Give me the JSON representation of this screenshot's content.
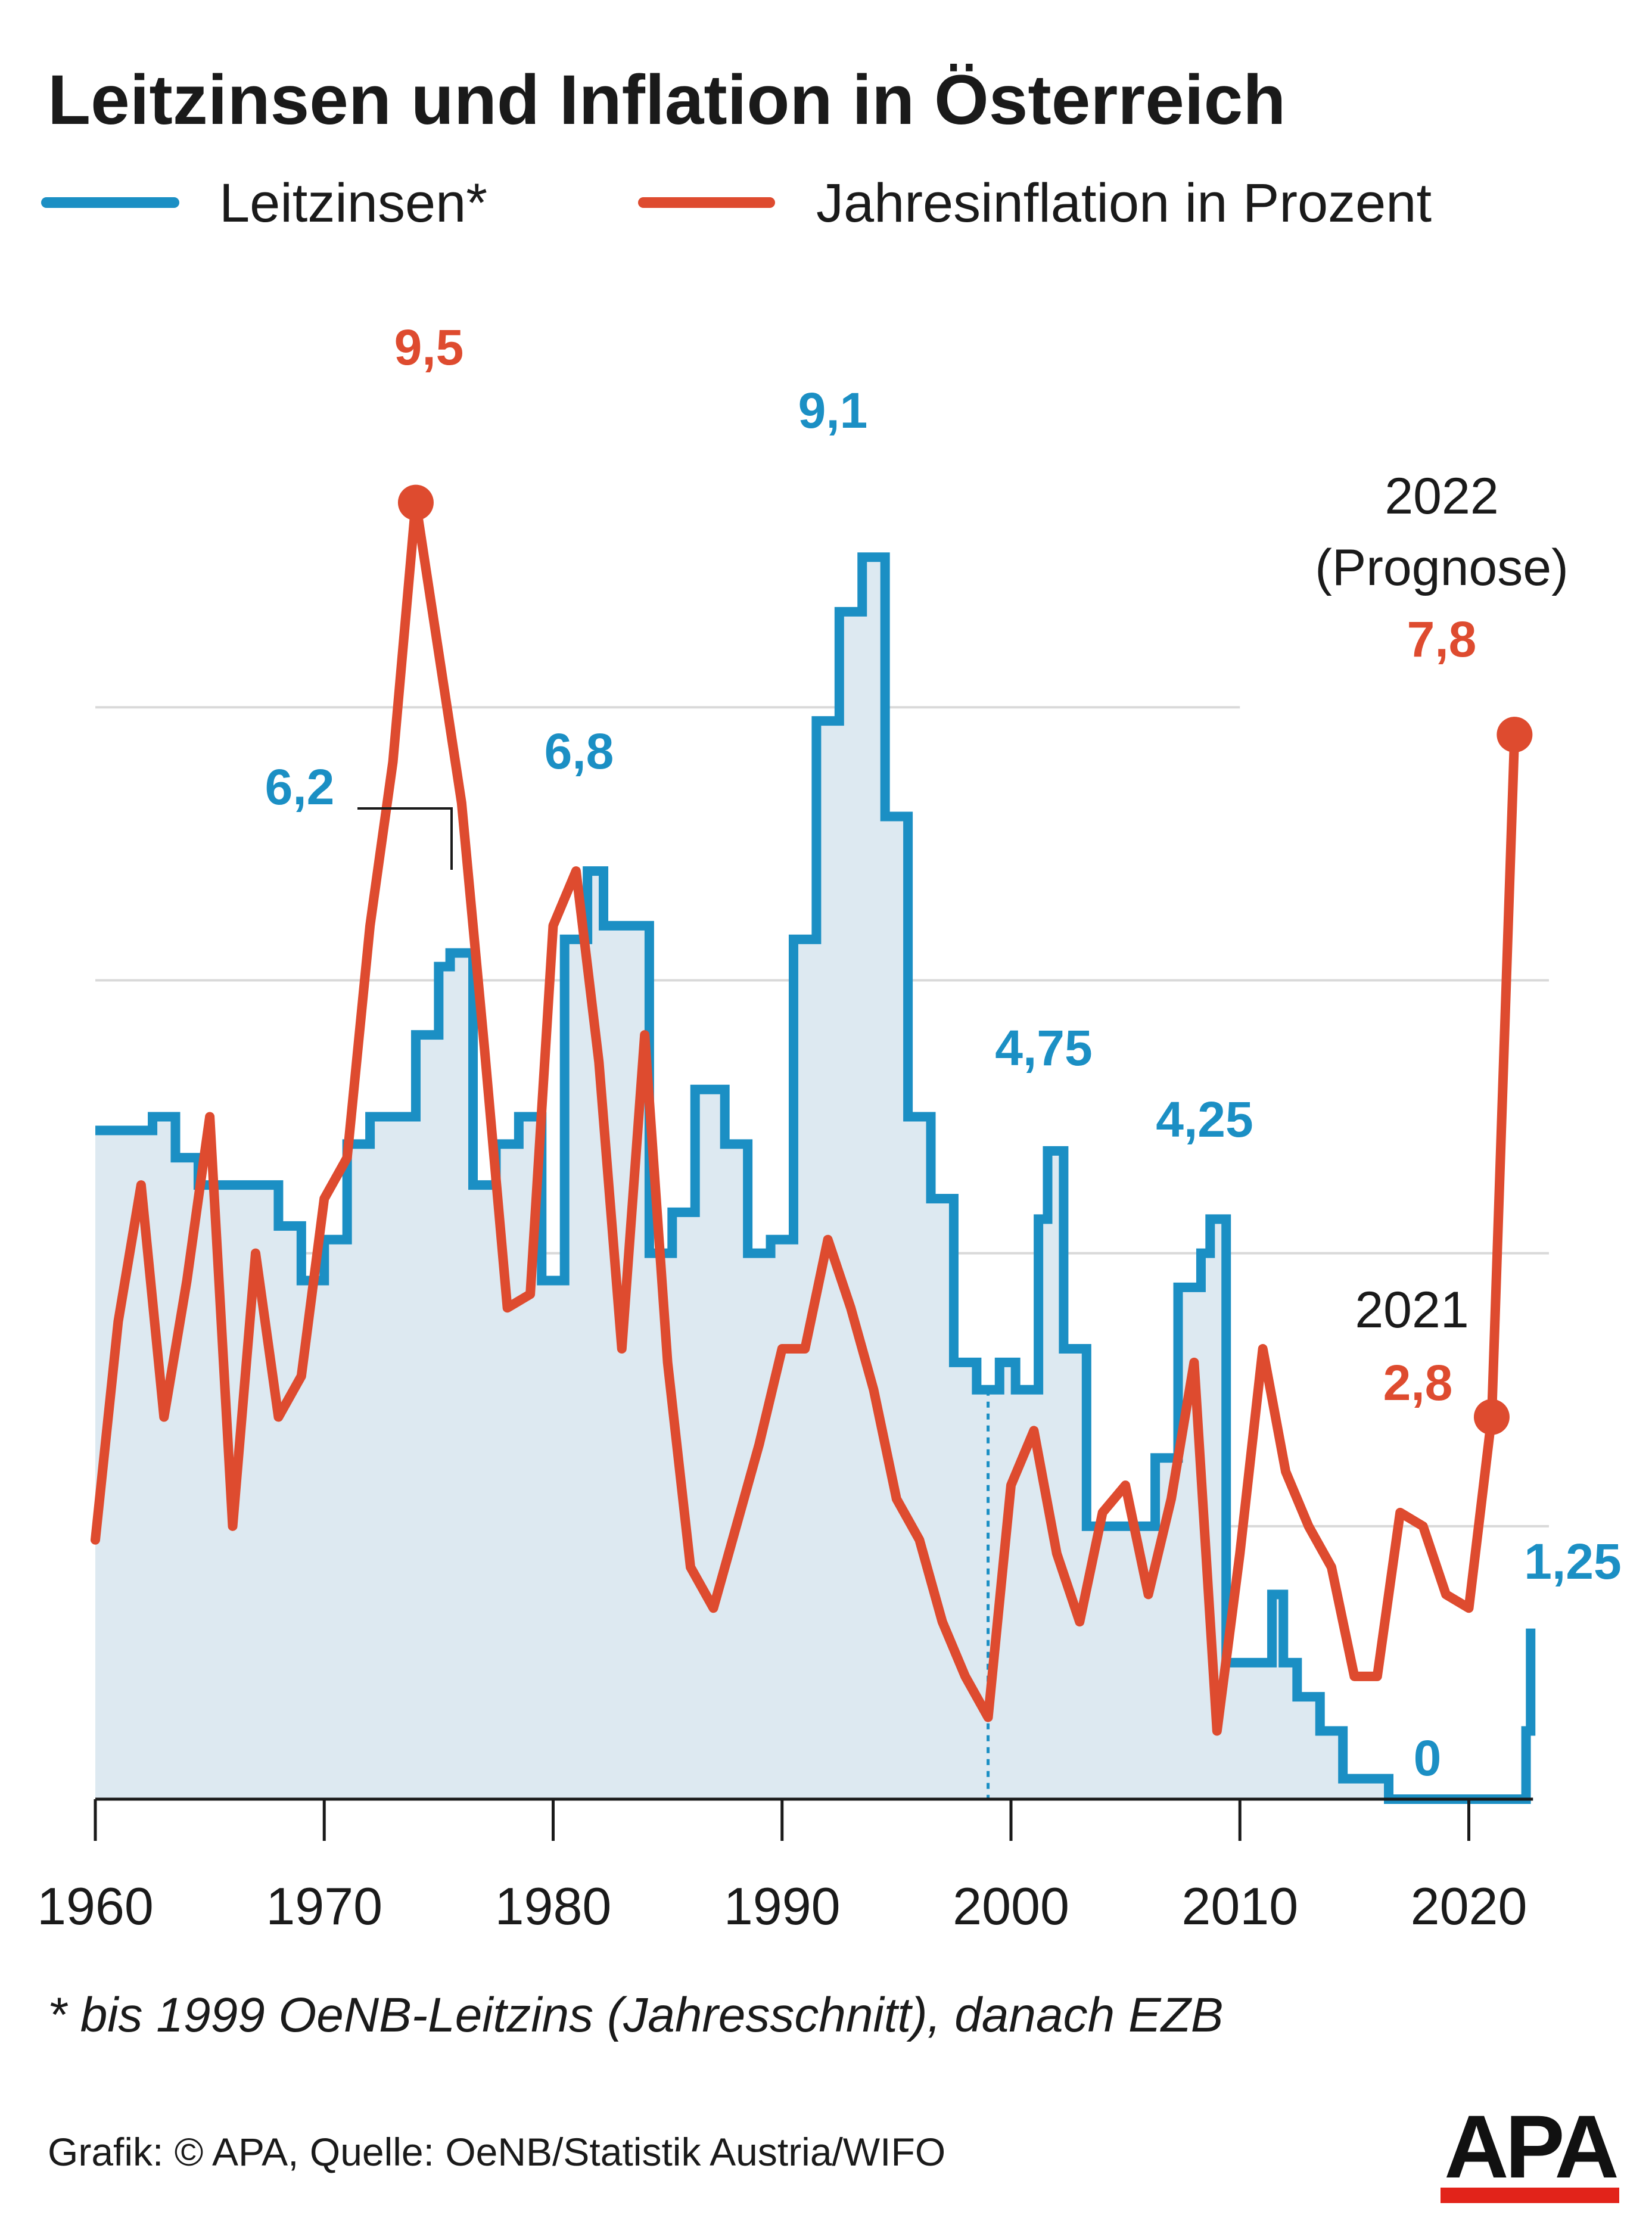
{
  "title": "Leitzinsen und Inflation in Österreich",
  "legend": {
    "leitzinsen": "Leitzinsen*",
    "inflation": "Jahresinflation in Prozent"
  },
  "footnote": "* bis 1999 OeNB-Leitzins (Jahresschnitt), danach EZB",
  "source": "Grafik: © APA, Quelle: OeNB/Statistik Austria/WIFO",
  "logo_text": "APA",
  "colors": {
    "leitzinsen": "#1b8fc4",
    "inflation": "#de4b2f",
    "area_fill": "#dde9f1",
    "grid": "#d9d9d9",
    "logo_red": "#e2231a"
  },
  "annotations": {
    "inflation_peak": "9,5",
    "leitzins_1975": "6,2",
    "leitzins_1981": "6,8",
    "leitzins_1992": "9,1",
    "leitzins_2000": "4,75",
    "leitzins_2008": "4,25",
    "leitzins_zero": "0",
    "leitzins_2022": "1,25",
    "label_2021": "2021",
    "value_2021": "2,8",
    "label_2022": "2022",
    "label_prognose": "(Prognose)",
    "value_2022": "7,8"
  },
  "chart_data": {
    "type": "line",
    "title": "Leitzinsen und Inflation in Österreich",
    "xlabel": "",
    "ylabel": "",
    "x_ticks": [
      "1960",
      "1970",
      "1980",
      "1990",
      "2000",
      "2010",
      "2020"
    ],
    "xlim": [
      1960,
      2023.5
    ],
    "ylim": [
      0,
      11
    ],
    "gridlines_y": [
      2,
      4,
      6,
      8
    ],
    "legend_position": "top",
    "series": [
      {
        "name": "Leitzinsen*",
        "style": "step-area",
        "points": [
          [
            1960,
            4.9
          ],
          [
            1962.5,
            5.0
          ],
          [
            1963.5,
            4.7
          ],
          [
            1964.5,
            4.5
          ],
          [
            1968,
            4.2
          ],
          [
            1969,
            3.8
          ],
          [
            1970,
            4.1
          ],
          [
            1971,
            4.8
          ],
          [
            1972,
            5.0
          ],
          [
            1974,
            5.6
          ],
          [
            1975,
            6.1
          ],
          [
            1975.5,
            6.2
          ],
          [
            1976.5,
            4.5
          ],
          [
            1977.5,
            4.8
          ],
          [
            1978.5,
            5.0
          ],
          [
            1979.5,
            3.8
          ],
          [
            1980.5,
            6.3
          ],
          [
            1981.5,
            6.8
          ],
          [
            1982.2,
            6.4
          ],
          [
            1983.2,
            6.4
          ],
          [
            1984.2,
            4.0
          ],
          [
            1985.2,
            4.3
          ],
          [
            1986.2,
            5.2
          ],
          [
            1987.5,
            4.8
          ],
          [
            1988.5,
            4.0
          ],
          [
            1989.5,
            4.1
          ],
          [
            1990.5,
            6.3
          ],
          [
            1991.5,
            7.9
          ],
          [
            1992.5,
            8.7
          ],
          [
            1993.5,
            9.1
          ],
          [
            1994.5,
            7.2
          ],
          [
            1995.5,
            5.0
          ],
          [
            1996.5,
            4.4
          ],
          [
            1997.5,
            3.2
          ],
          [
            1998.5,
            3.0
          ],
          [
            1999.5,
            3.2
          ],
          [
            2000.2,
            3.0
          ],
          [
            2001.2,
            4.25
          ],
          [
            2001.6,
            4.75
          ],
          [
            2002.3,
            3.3
          ],
          [
            2003.3,
            2.0
          ],
          [
            2006.3,
            2.5
          ],
          [
            2007.3,
            3.75
          ],
          [
            2008.3,
            4.0
          ],
          [
            2008.7,
            4.25
          ],
          [
            2009.4,
            1.0
          ],
          [
            2011.4,
            1.5
          ],
          [
            2011.9,
            1.0
          ],
          [
            2012.5,
            0.75
          ],
          [
            2013.5,
            0.5
          ],
          [
            2014.5,
            0.15
          ],
          [
            2016.5,
            0.0
          ],
          [
            2022.5,
            0.5
          ],
          [
            2022.7,
            1.25
          ]
        ]
      },
      {
        "name": "Jahresinflation in Prozent",
        "style": "line",
        "points": [
          [
            1960,
            1.9
          ],
          [
            1961,
            3.5
          ],
          [
            1962,
            4.5
          ],
          [
            1963,
            2.8
          ],
          [
            1964,
            3.8
          ],
          [
            1965,
            5.0
          ],
          [
            1966,
            2.0
          ],
          [
            1967,
            4.0
          ],
          [
            1968,
            2.8
          ],
          [
            1969,
            3.1
          ],
          [
            1970,
            4.4
          ],
          [
            1971,
            4.7
          ],
          [
            1972,
            6.4
          ],
          [
            1973,
            7.6
          ],
          [
            1974,
            9.5
          ],
          [
            1975,
            8.4
          ],
          [
            1976,
            7.3
          ],
          [
            1977,
            5.5
          ],
          [
            1978,
            3.6
          ],
          [
            1979,
            3.7
          ],
          [
            1980,
            6.4
          ],
          [
            1981,
            6.8
          ],
          [
            1982,
            5.4
          ],
          [
            1983,
            3.3
          ],
          [
            1984,
            5.6
          ],
          [
            1985,
            3.2
          ],
          [
            1986,
            1.7
          ],
          [
            1987,
            1.4
          ],
          [
            1988,
            2.0
          ],
          [
            1989,
            2.6
          ],
          [
            1990,
            3.3
          ],
          [
            1991,
            3.3
          ],
          [
            1992,
            4.1
          ],
          [
            1993,
            3.6
          ],
          [
            1994,
            3.0
          ],
          [
            1995,
            2.2
          ],
          [
            1996,
            1.9
          ],
          [
            1997,
            1.3
          ],
          [
            1998,
            0.9
          ],
          [
            1999,
            0.6
          ],
          [
            2000,
            2.3
          ],
          [
            2001,
            2.7
          ],
          [
            2002,
            1.8
          ],
          [
            2003,
            1.3
          ],
          [
            2004,
            2.1
          ],
          [
            2005,
            2.3
          ],
          [
            2006,
            1.5
          ],
          [
            2007,
            2.2
          ],
          [
            2008,
            3.2
          ],
          [
            2009,
            0.5
          ],
          [
            2010,
            1.8
          ],
          [
            2011,
            3.3
          ],
          [
            2012,
            2.4
          ],
          [
            2013,
            2.0
          ],
          [
            2014,
            1.7
          ],
          [
            2015,
            0.9
          ],
          [
            2016,
            0.9
          ],
          [
            2017,
            2.1
          ],
          [
            2018,
            2.0
          ],
          [
            2019,
            1.5
          ],
          [
            2020,
            1.4
          ],
          [
            2021,
            2.8
          ],
          [
            2022,
            7.8
          ]
        ]
      }
    ]
  }
}
